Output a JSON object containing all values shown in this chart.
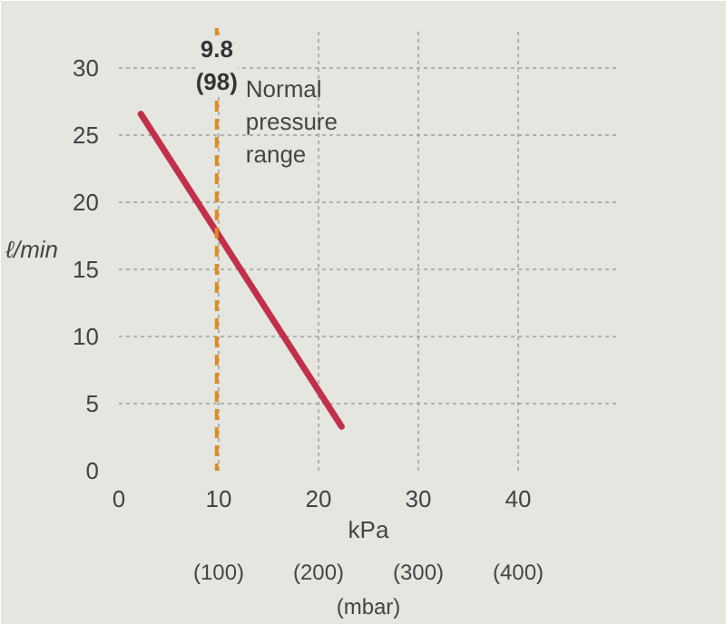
{
  "chart_data": {
    "type": "line",
    "xlabel": "kPa",
    "ylabel": "ℓ/min",
    "series": [
      {
        "color": "#c0304a",
        "x": [
          2.2,
          22.3
        ],
        "values": [
          26.6,
          3.3
        ]
      }
    ],
    "xlim": [
      0,
      50
    ],
    "ylim": [
      0,
      33
    ],
    "xticks": [
      0,
      10,
      20,
      30,
      40
    ],
    "x2lim": [
      0,
      500
    ],
    "x2label": "(mbar)",
    "x2ticks": [
      {
        "value": 100,
        "label": "(100)"
      },
      {
        "value": 200,
        "label": "(200)"
      },
      {
        "value": 300,
        "label": "(300)"
      },
      {
        "value": 400,
        "label": "(400)"
      }
    ],
    "yticks": [
      0,
      5,
      10,
      15,
      20,
      25,
      30
    ],
    "ref_lines": [
      {
        "axis": "x",
        "value": 9.8,
        "label": "9.8\n(98)",
        "color": "#e08a20",
        "line_style": "dashed"
      }
    ],
    "annotations": [
      {
        "text": "Normal\npressure\nrange",
        "x": 9.8,
        "y": 30
      }
    ],
    "grid": true,
    "marker": "none",
    "line_style": "solid"
  }
}
